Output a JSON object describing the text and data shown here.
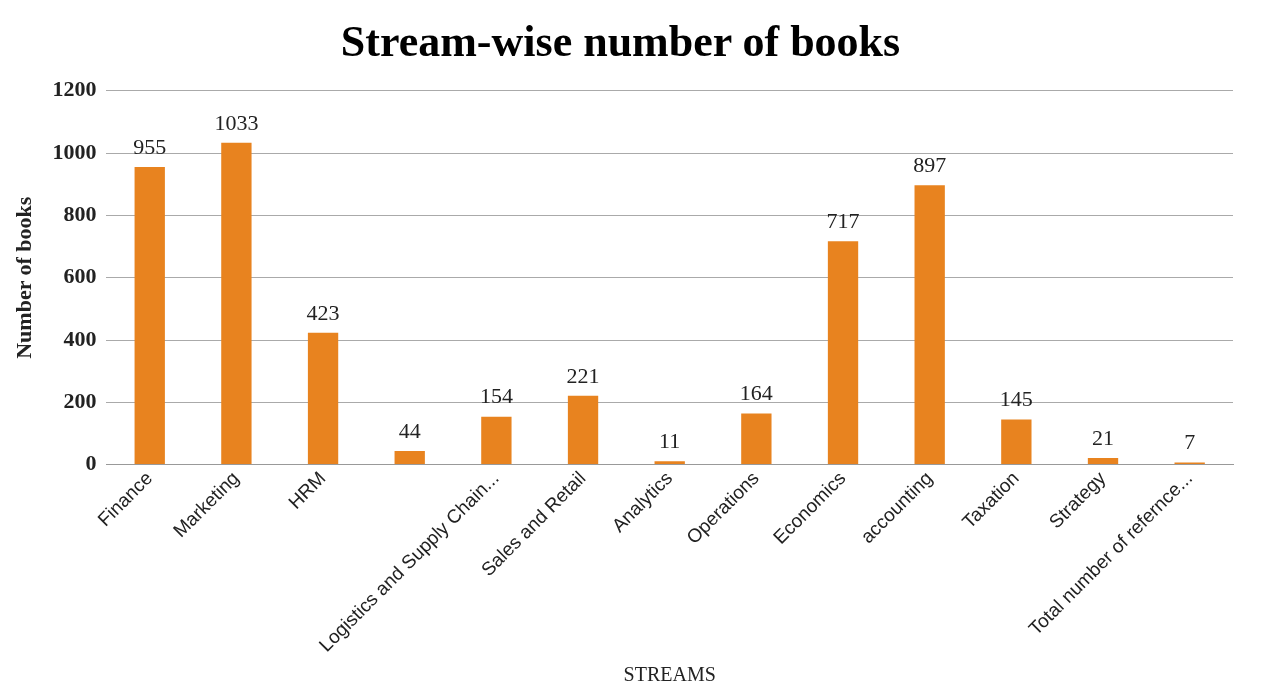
{
  "chart_data": {
    "type": "bar",
    "title": "Stream-wise number of books",
    "xlabel": "STREAMS",
    "ylabel": "Number of books",
    "categories": [
      "Finance",
      "Marketing",
      "HRM",
      null,
      "Logistics and Supply Chain...",
      "Sales and Retail",
      "Analytics",
      "Operations",
      "Economics",
      "accounting",
      "Taxation",
      "Strategy",
      "Total number of refernce..."
    ],
    "values": [
      955,
      1033,
      423,
      44,
      154,
      221,
      11,
      164,
      717,
      897,
      145,
      21,
      7
    ],
    "color": "#e8831f",
    "ylim": [
      0,
      1200
    ],
    "yticks": [
      0,
      200,
      400,
      600,
      800,
      1000,
      1200
    ],
    "grid": "y",
    "data_labels": true
  }
}
